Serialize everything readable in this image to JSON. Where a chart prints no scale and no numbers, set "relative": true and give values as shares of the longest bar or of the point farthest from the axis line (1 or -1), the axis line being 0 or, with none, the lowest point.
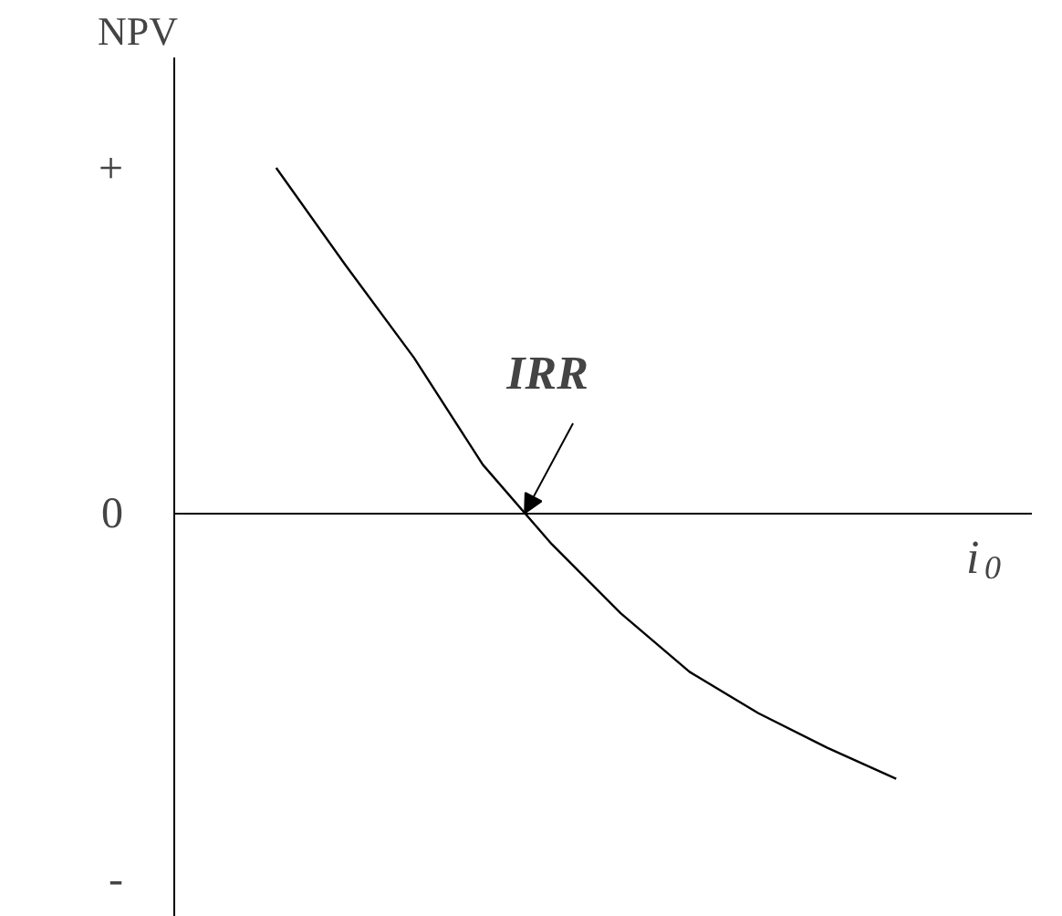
{
  "chart_data": {
    "type": "line",
    "relative": true,
    "ylabel": "NPV",
    "xlabel": "i$_{0}$",
    "categories": [
      null,
      null,
      null,
      null,
      null,
      null,
      null,
      null,
      null,
      null
    ],
    "series": [
      {
        "color": "#000000",
        "values": [
          1,
          0.72,
          0.45,
          0.14,
          -0.09,
          -0.29,
          -0.46,
          -0.58,
          -0.68,
          -0.77
        ]
      }
    ],
    "tick_labels": "y",
    "grid": false,
    "marker": "none",
    "line_style": "solid",
    "annotations": [
      "+",
      "0",
      "-",
      "IRR"
    ]
  }
}
